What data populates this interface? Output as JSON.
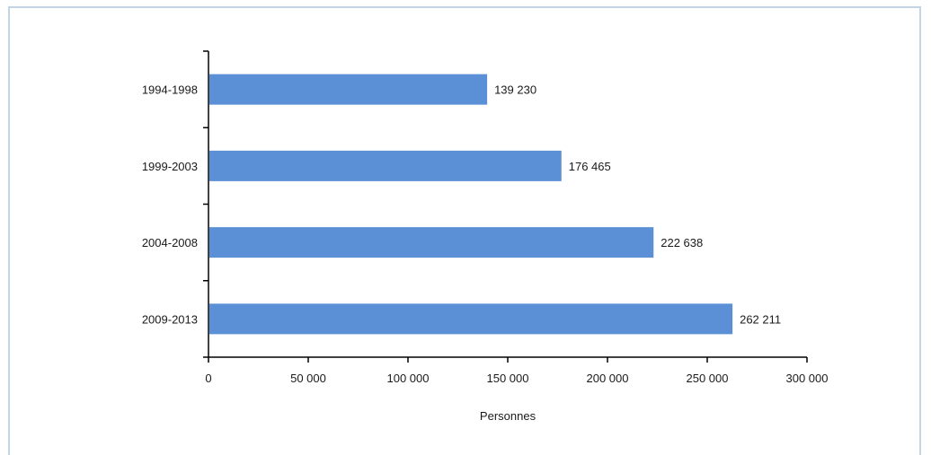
{
  "chart_data": {
    "type": "bar",
    "orientation": "horizontal",
    "categories": [
      "1994-1998",
      "1999-2003",
      "2004-2008",
      "2009-2013"
    ],
    "values": [
      139230,
      176465,
      222638,
      262211
    ],
    "value_labels": [
      "139 230",
      "176 465",
      "222 638",
      "262 211"
    ],
    "xlabel": "Personnes",
    "ylabel": "",
    "xlim": [
      0,
      300000
    ],
    "x_ticks": [
      0,
      50000,
      100000,
      150000,
      200000,
      250000,
      300000
    ],
    "x_tick_labels": [
      "0",
      "50 000",
      "100 000",
      "150 000",
      "200 000",
      "250 000",
      "300 000"
    ],
    "bar_color": "#5b8fd6",
    "grid": false,
    "legend": "none"
  }
}
